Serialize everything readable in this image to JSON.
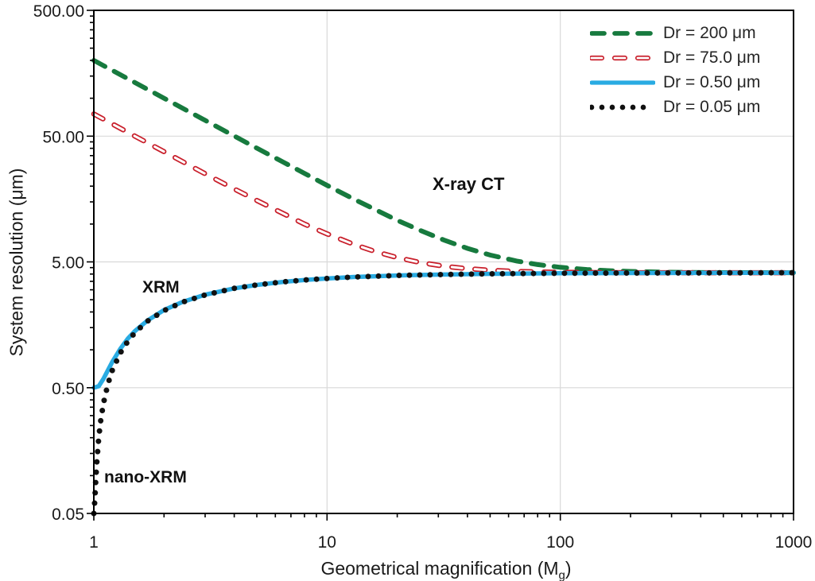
{
  "chart_data": {
    "type": "line",
    "title": "",
    "ylabel": "System resolution (μm)",
    "xlabel_pre": "Geometrical magnification (M",
    "xlabel_sub": "g",
    "xlabel_post": ")",
    "x_axis": {
      "scale": "log",
      "min": 1,
      "max": 1000,
      "ticks": [
        1,
        10,
        100,
        1000
      ],
      "tick_labels": [
        "1",
        "10",
        "100",
        "1000"
      ]
    },
    "y_axis": {
      "scale": "log",
      "min": 0.05,
      "max": 500,
      "ticks": [
        500,
        50,
        5,
        0.5,
        0.05
      ],
      "tick_labels": [
        "500.00",
        "50.00",
        "5.00",
        "0.50",
        "0.05"
      ]
    },
    "grid": {
      "show": true,
      "color": "#d9d9d9",
      "x_lines": [
        10,
        100
      ],
      "y_lines": [
        50,
        5,
        0.5
      ]
    },
    "frame_color": "#000000",
    "text_color": "#1a1a1a",
    "legend_position": "top-right-inside",
    "annotations": {
      "xray_ct": "X-ray CT",
      "xrm": "XRM",
      "nano_xrm": "nano-XRM"
    },
    "series": [
      {
        "name": "Dr = 200 μm",
        "dr_um": 200,
        "style": "dashed-thick",
        "color": "#177a3e",
        "points": [
          [
            1,
            200
          ],
          [
            1.2,
            166.7
          ],
          [
            1.5,
            133.3
          ],
          [
            2,
            100
          ],
          [
            3,
            66.7
          ],
          [
            4,
            50.1
          ],
          [
            5,
            40.1
          ],
          [
            6.5,
            31.0
          ],
          [
            8,
            25.3
          ],
          [
            10,
            20.3
          ],
          [
            13,
            15.8
          ],
          [
            16,
            13.1
          ],
          [
            20,
            10.7
          ],
          [
            25,
            8.92
          ],
          [
            32,
            7.41
          ],
          [
            40,
            6.4
          ],
          [
            50,
            5.67
          ],
          [
            65,
            5.08
          ],
          [
            80,
            4.76
          ],
          [
            100,
            4.53
          ],
          [
            130,
            4.35
          ],
          [
            160,
            4.26
          ],
          [
            200,
            4.2
          ],
          [
            300,
            4.14
          ],
          [
            500,
            4.11
          ],
          [
            1000,
            4.1
          ]
        ]
      },
      {
        "name": "Dr = 75.0 μm",
        "dr_um": 75,
        "style": "dashed-open",
        "color": "#c9202c",
        "points": [
          [
            1,
            75
          ],
          [
            1.2,
            62.5
          ],
          [
            1.5,
            50.0
          ],
          [
            2,
            37.6
          ],
          [
            3,
            25.1
          ],
          [
            4,
            19.0
          ],
          [
            5,
            15.4
          ],
          [
            6.5,
            12.1
          ],
          [
            8,
            10.0
          ],
          [
            10,
            8.36
          ],
          [
            13,
            6.9
          ],
          [
            16,
            6.06
          ],
          [
            20,
            5.41
          ],
          [
            25,
            4.95
          ],
          [
            32,
            4.61
          ],
          [
            40,
            4.42
          ],
          [
            50,
            4.29
          ],
          [
            65,
            4.2
          ],
          [
            80,
            4.16
          ],
          [
            100,
            4.13
          ],
          [
            150,
            4.11
          ],
          [
            200,
            4.1
          ],
          [
            500,
            4.1
          ],
          [
            1000,
            4.1
          ]
        ]
      },
      {
        "name": "Dr = 0.50 μm",
        "dr_um": 0.5,
        "style": "solid",
        "color": "#29abe2",
        "points": [
          [
            1,
            0.5
          ],
          [
            1.05,
            0.514
          ],
          [
            1.1,
            0.588
          ],
          [
            1.15,
            0.689
          ],
          [
            1.2,
            0.8
          ],
          [
            1.3,
            1.02
          ],
          [
            1.4,
            1.23
          ],
          [
            1.5,
            1.41
          ],
          [
            1.7,
            1.71
          ],
          [
            2,
            2.07
          ],
          [
            2.4,
            2.4
          ],
          [
            3,
            2.74
          ],
          [
            4,
            3.08
          ],
          [
            5,
            3.28
          ],
          [
            6.5,
            3.47
          ],
          [
            8,
            3.59
          ],
          [
            10,
            3.69
          ],
          [
            13,
            3.79
          ],
          [
            16,
            3.84
          ],
          [
            20,
            3.9
          ],
          [
            30,
            3.96
          ],
          [
            50,
            4.02
          ],
          [
            100,
            4.06
          ],
          [
            200,
            4.08
          ],
          [
            500,
            4.09
          ],
          [
            1000,
            4.1
          ]
        ]
      },
      {
        "name": "Dr = 0.05 μm",
        "dr_um": 0.05,
        "style": "dotted",
        "color": "#111111",
        "points": [
          [
            1,
            0.05
          ],
          [
            1.01,
            0.064
          ],
          [
            1.02,
            0.094
          ],
          [
            1.03,
            0.129
          ],
          [
            1.05,
            0.201
          ],
          [
            1.07,
            0.272
          ],
          [
            1.1,
            0.375
          ],
          [
            1.15,
            0.537
          ],
          [
            1.2,
            0.685
          ],
          [
            1.3,
            0.947
          ],
          [
            1.4,
            1.17
          ],
          [
            1.5,
            1.37
          ],
          [
            1.7,
            1.69
          ],
          [
            2,
            2.05
          ],
          [
            2.4,
            2.39
          ],
          [
            3,
            2.73
          ],
          [
            4,
            3.08
          ],
          [
            5,
            3.28
          ],
          [
            6.5,
            3.47
          ],
          [
            8,
            3.59
          ],
          [
            10,
            3.69
          ],
          [
            13,
            3.79
          ],
          [
            16,
            3.84
          ],
          [
            20,
            3.9
          ],
          [
            30,
            3.96
          ],
          [
            50,
            4.02
          ],
          [
            100,
            4.06
          ],
          [
            200,
            4.08
          ],
          [
            500,
            4.09
          ],
          [
            1000,
            4.1
          ]
        ]
      }
    ]
  }
}
